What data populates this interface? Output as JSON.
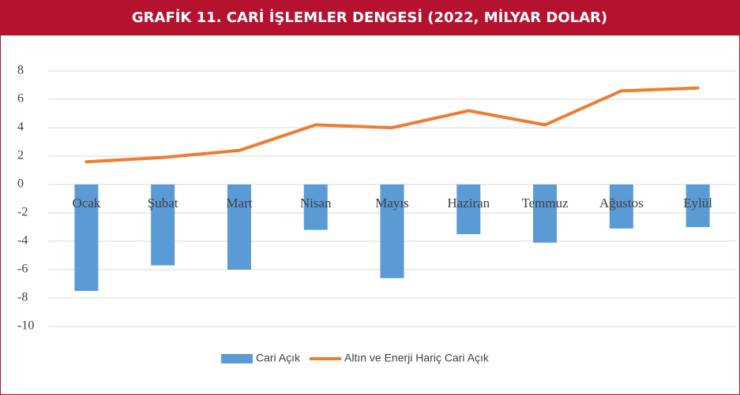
{
  "chart_data": {
    "type": "bar_line",
    "title": "GRAFİK 11. CARİ İŞLEMLER DENGESİ (2022, MİLYAR DOLAR)",
    "categories": [
      "Ocak",
      "Şubat",
      "Mart",
      "Nisan",
      "Mayıs",
      "Haziran",
      "Temmuz",
      "Ağustos",
      "Eylül"
    ],
    "series": [
      {
        "name": "Cari Açık",
        "type": "bar",
        "color": "#5b9bd5",
        "values": [
          -7.5,
          -5.7,
          -6.0,
          -3.2,
          -6.6,
          -3.5,
          -4.1,
          -3.1,
          -3.0
        ]
      },
      {
        "name": "Altın ve Enerji Hariç Cari Açık",
        "type": "line",
        "color": "#ed7d31",
        "values": [
          1.6,
          1.9,
          2.4,
          4.2,
          4.0,
          5.2,
          4.2,
          6.6,
          6.8
        ]
      }
    ],
    "ylim": [
      -10,
      8
    ],
    "yticks": [
      -10,
      -8,
      -6,
      -4,
      -2,
      0,
      2,
      4,
      6,
      8
    ],
    "grid": true
  }
}
